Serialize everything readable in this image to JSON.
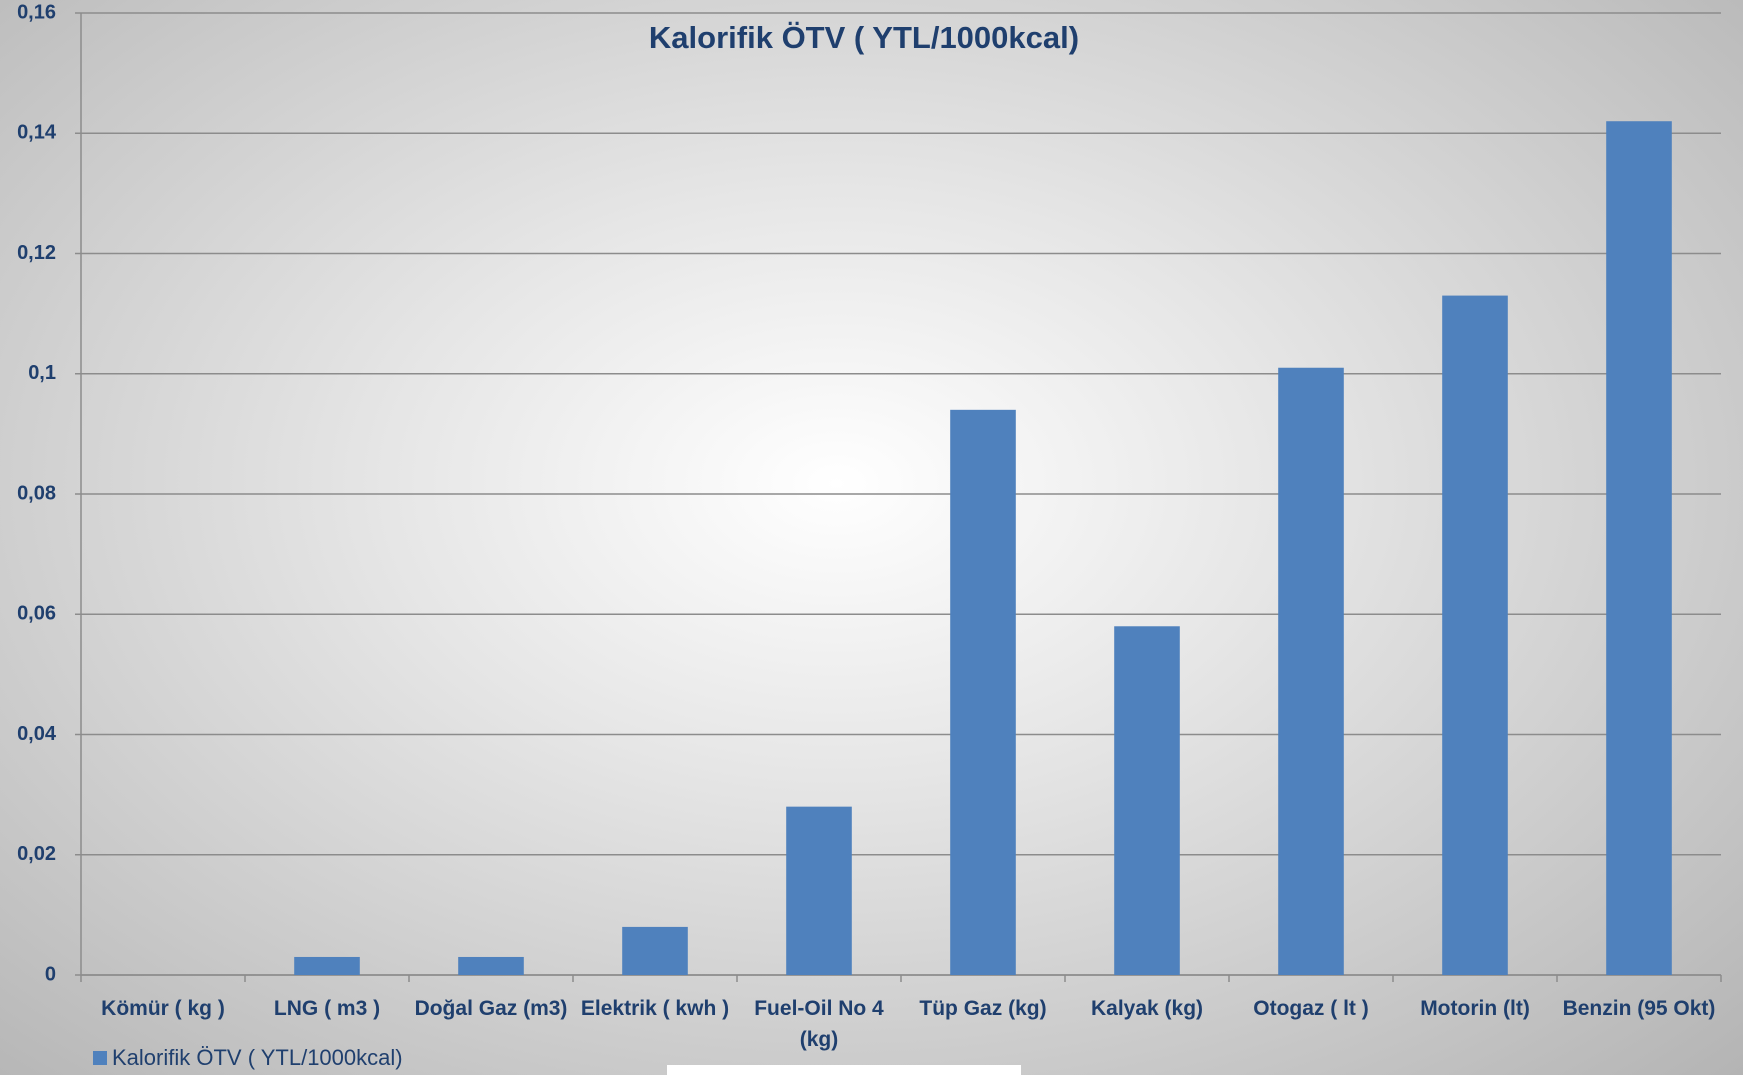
{
  "chart_data": {
    "type": "bar",
    "title": "Kalorifik ÖTV ( YTL/1000kcal)",
    "categories": [
      "Kömür ( kg )",
      "LNG ( m3 )",
      "Doğal Gaz (m3)",
      "Elektrik ( kwh )",
      "Fuel-Oil  No 4 (kg)",
      "Tüp Gaz (kg)",
      "Kalyak (kg)",
      "Otogaz ( lt )",
      "Motorin (lt)",
      "Benzin (95 Okt)"
    ],
    "series": [
      {
        "name": "Kalorifik ÖTV ( YTL/1000kcal)",
        "color": "#4f81bd",
        "values": [
          0,
          0.003,
          0.003,
          0.008,
          0.028,
          0.094,
          0.058,
          0.101,
          0.113,
          0.142
        ]
      }
    ],
    "ylim": [
      0,
      0.16
    ],
    "yticks": [
      0,
      {
        "value": 0.02,
        "label": "0,02"
      },
      {
        "value": 0.04,
        "label": "0,04"
      },
      {
        "value": 0.06,
        "label": "0,06"
      },
      {
        "value": 0.08,
        "label": "0,08"
      },
      {
        "value": 0.1,
        "label": "0,1"
      },
      {
        "value": 0.12,
        "label": "0,12"
      },
      {
        "value": 0.14,
        "label": "0,14"
      },
      {
        "value": 0.16,
        "label": "0,16"
      }
    ],
    "grid": true,
    "legend": "bottom-left"
  }
}
